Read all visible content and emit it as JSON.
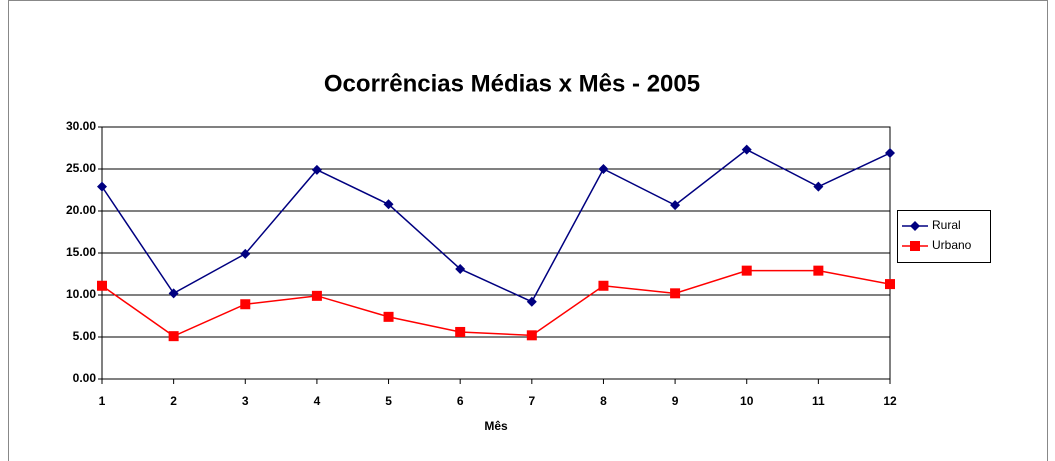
{
  "chart_data": {
    "type": "line",
    "title": "Ocorrências Médias x Mês - 2005",
    "x_label": "Mês",
    "categories": [
      "1",
      "2",
      "3",
      "4",
      "5",
      "6",
      "7",
      "8",
      "9",
      "10",
      "11",
      "12"
    ],
    "series": [
      {
        "name": "Rural",
        "color": "#000080",
        "values": [
          22.9,
          10.2,
          14.9,
          24.9,
          20.8,
          13.1,
          9.2,
          25.0,
          20.7,
          27.3,
          22.9,
          26.9
        ]
      },
      {
        "name": "Urbano",
        "color": "#ff0000",
        "values": [
          11.1,
          5.1,
          8.9,
          9.9,
          7.4,
          5.6,
          5.2,
          11.1,
          10.2,
          12.9,
          12.9,
          11.3
        ]
      }
    ],
    "ylim": [
      0,
      30
    ],
    "yticks": [
      {
        "value": 0,
        "label": "0.00"
      },
      {
        "value": 5,
        "label": "5.00"
      },
      {
        "value": 10,
        "label": "10.00"
      },
      {
        "value": 15,
        "label": "15.00"
      },
      {
        "value": 20,
        "label": "20.00"
      },
      {
        "value": 25,
        "label": "25.00"
      },
      {
        "value": 30,
        "label": "30.00"
      }
    ],
    "grid": true,
    "legend": "right"
  }
}
